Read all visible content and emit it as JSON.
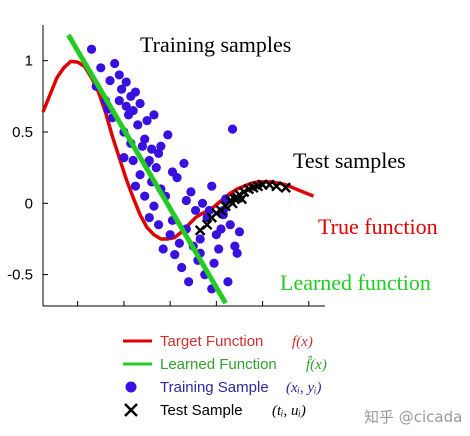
{
  "chart_data": {
    "type": "scatter",
    "xlim": [
      -0.15,
      1.07
    ],
    "ylim": [
      -0.72,
      1.25
    ],
    "yticks": [
      -0.5,
      0,
      0.5,
      1
    ],
    "ytick_labels": [
      "-0.5",
      "0",
      "0.5",
      "1"
    ],
    "x_ticks_labeled": false,
    "grid": false,
    "annotations": {
      "training_samples": "Training samples",
      "test_samples": "Test samples",
      "true_function": "True function",
      "learned_function": "Learned function"
    },
    "colors": {
      "true_function": "#e00000",
      "learned_function": "#22cc22",
      "training": "#3a10e0",
      "test": "#000000",
      "legend_target_text": "#d03030",
      "legend_learned_text": "#30a030",
      "legend_training_text": "#2a2aa0",
      "watermark": "#9a9a9a"
    },
    "series": [
      {
        "name": "Target Function",
        "kind": "line",
        "x": [
          -0.15,
          -0.12,
          -0.09,
          -0.06,
          -0.03,
          0.0,
          0.03,
          0.06,
          0.09,
          0.12,
          0.15,
          0.18,
          0.21,
          0.24,
          0.27,
          0.3,
          0.33,
          0.36,
          0.39,
          0.42,
          0.45,
          0.48,
          0.51,
          0.54,
          0.57,
          0.6,
          0.63,
          0.66,
          0.69,
          0.72,
          0.75,
          0.78,
          0.81,
          0.84,
          0.87,
          0.9,
          0.93,
          0.96,
          0.99,
          1.02
        ],
        "y": [
          0.64,
          0.76,
          0.88,
          0.95,
          0.995,
          0.99,
          0.96,
          0.88,
          0.78,
          0.64,
          0.47,
          0.32,
          0.17,
          0.04,
          -0.08,
          -0.17,
          -0.22,
          -0.25,
          -0.25,
          -0.24,
          -0.2,
          -0.15,
          -0.1,
          -0.07,
          -0.05,
          -0.01,
          0.03,
          0.07,
          0.1,
          0.12,
          0.14,
          0.15,
          0.15,
          0.15,
          0.14,
          0.13,
          0.11,
          0.09,
          0.07,
          0.05
        ]
      },
      {
        "name": "Learned Function",
        "kind": "line",
        "x": [
          -0.04,
          0.64
        ],
        "y": [
          1.18,
          -0.7
        ]
      },
      {
        "name": "Training Sample",
        "kind": "points",
        "x": [
          0.06,
          0.08,
          0.1,
          0.12,
          0.14,
          0.15,
          0.16,
          0.18,
          0.19,
          0.2,
          0.2,
          0.21,
          0.22,
          0.23,
          0.24,
          0.25,
          0.25,
          0.26,
          0.27,
          0.28,
          0.29,
          0.3,
          0.3,
          0.31,
          0.32,
          0.32,
          0.33,
          0.34,
          0.35,
          0.36,
          0.37,
          0.38,
          0.4,
          0.41,
          0.42,
          0.44,
          0.45,
          0.47,
          0.48,
          0.5,
          0.52,
          0.53,
          0.55,
          0.57,
          0.58,
          0.6,
          0.61,
          0.63,
          0.64,
          0.66,
          0.67,
          0.69,
          0.21,
          0.23,
          0.27,
          0.29,
          0.33,
          0.35,
          0.39,
          0.43,
          0.46,
          0.49,
          0.51,
          0.54,
          0.56,
          0.59,
          0.62,
          0.65,
          0.68,
          0.7,
          0.13,
          0.18,
          0.24,
          0.31,
          0.36,
          0.41,
          0.47,
          0.53,
          0.58,
          0.63
        ],
        "y": [
          1.08,
          0.82,
          0.95,
          0.72,
          0.86,
          0.6,
          0.98,
          0.72,
          0.8,
          0.5,
          0.32,
          0.85,
          0.62,
          0.42,
          0.3,
          0.78,
          0.12,
          0.55,
          0.2,
          0.4,
          0.05,
          0.28,
          0.58,
          -0.1,
          0.15,
          0.38,
          -0.02,
          0.25,
          -0.15,
          0.1,
          -0.32,
          0.05,
          -0.22,
          -0.12,
          -0.36,
          -0.28,
          -0.45,
          -0.18,
          -0.55,
          -0.3,
          -0.4,
          -0.25,
          -0.5,
          -0.05,
          0.12,
          -0.22,
          -0.32,
          -0.08,
          0.03,
          -0.15,
          0.52,
          -0.35,
          0.68,
          0.75,
          0.7,
          0.45,
          0.62,
          0.35,
          0.48,
          0.18,
          0.28,
          0.08,
          -0.05,
          0.0,
          -0.1,
          -0.42,
          -0.18,
          -0.55,
          -0.3,
          -0.2,
          0.66,
          0.9,
          0.65,
          0.3,
          0.4,
          0.22,
          0.02,
          -0.35,
          -0.6,
          -0.05
        ]
      },
      {
        "name": "Test Sample",
        "kind": "points",
        "x": [
          0.53,
          0.56,
          0.58,
          0.6,
          0.62,
          0.64,
          0.66,
          0.67,
          0.68,
          0.69,
          0.7,
          0.71,
          0.72,
          0.74,
          0.76,
          0.78,
          0.8,
          0.83,
          0.86,
          0.9
        ],
        "y": [
          -0.19,
          -0.15,
          -0.1,
          -0.07,
          -0.05,
          -0.02,
          0.02,
          0.0,
          0.03,
          0.04,
          0.06,
          0.03,
          0.08,
          0.1,
          0.11,
          0.12,
          0.13,
          0.13,
          0.12,
          0.11
        ]
      }
    ],
    "legend": {
      "placement": "bottom",
      "entries": [
        {
          "label": "Target Function",
          "math": "f(x)",
          "marker": "line",
          "color": "#e00000",
          "text_color": "#d03030"
        },
        {
          "label": "Learned Function",
          "math": "f̂(x)",
          "marker": "line",
          "color": "#22cc22",
          "text_color": "#30a030"
        },
        {
          "label": "Training Sample",
          "math": "(xᵢ, yᵢ)",
          "marker": "circle",
          "color": "#3a10e0",
          "text_color": "#2a2aa0"
        },
        {
          "label": "Test Sample",
          "math": "(tᵢ, uᵢ)",
          "marker": "x",
          "color": "#000000",
          "text_color": "#000000"
        }
      ]
    }
  },
  "watermark": "知乎 @cicada"
}
